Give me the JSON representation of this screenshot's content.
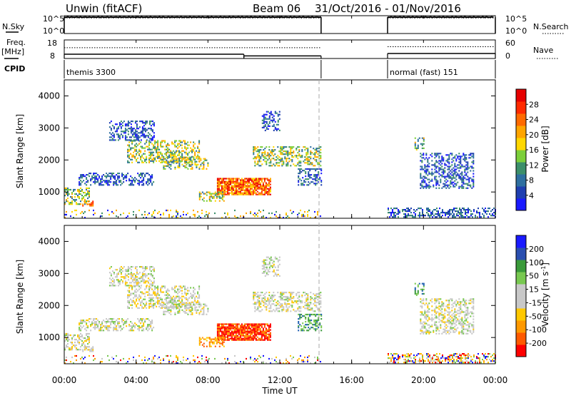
{
  "header": {
    "station": "Unwin (fitACF)",
    "beam": "Beam 06",
    "date_range": "31/Oct/2016 - 01/Nov/2016"
  },
  "labels": {
    "nsky": "N.Sky",
    "nsearch": "N.Search",
    "freq": "Freq.",
    "freq_unit": "[MHz]",
    "nave": "Nave",
    "cpid": "CPID",
    "slant_range": "Slant Range [km]",
    "x_axis": "Time UT",
    "power_cb": "Power [dB]",
    "velocity_cb": "Velocity [m s"
  },
  "noise_ticks_left": [
    "10^5",
    "10^0"
  ],
  "noise_ticks_right": [
    "10^5",
    "10^0"
  ],
  "freq_ticks_left": [
    "18",
    "8"
  ],
  "freq_ticks_right": [
    "60",
    "0"
  ],
  "cpid_segments": [
    {
      "label": "themis 3300",
      "start": 0.0,
      "end": 14.3
    },
    {
      "label": "normal (fast) 151",
      "start": 18.0,
      "end": 24.0
    }
  ],
  "x_ticks": [
    "00:00",
    "04:00",
    "08:00",
    "12:00",
    "16:00",
    "20:00",
    "00:00"
  ],
  "range_ticks": [
    "1000",
    "2000",
    "3000",
    "4000"
  ],
  "power_scale": {
    "ticks": [
      "4",
      "8",
      "12",
      "16",
      "20",
      "24",
      "28"
    ],
    "colors": [
      "#1a1aff",
      "#1f3fb0",
      "#2e6fa0",
      "#3c8f6a",
      "#7ccf3a",
      "#ffd700",
      "#ffa500",
      "#ff6a00",
      "#ff2a00",
      "#e60000"
    ]
  },
  "velocity_scale": {
    "ticks": [
      "-200",
      "-100",
      "-50",
      "-15",
      "15",
      "50",
      "100",
      "200"
    ],
    "colors": [
      "#ff0000",
      "#ff5a00",
      "#ff9900",
      "#ffc800",
      "#c8c8c8",
      "#c8c8c8",
      "#78c850",
      "#3a9a3a",
      "#2a4fb0",
      "#1a1aff"
    ]
  },
  "chart_data": {
    "type": "heatmap",
    "x_range_hours": [
      0,
      24
    ],
    "y_range_km": [
      180,
      4500
    ],
    "data_gap_hours": [
      14.3,
      18.0
    ],
    "nsky_level": 4.6,
    "nsearch_level": 4.5,
    "freq_segments": [
      {
        "start": 0.0,
        "end": 10.0,
        "mhz": 10.3
      },
      {
        "start": 10.0,
        "end": 14.3,
        "mhz": 9.4
      },
      {
        "start": 18.0,
        "end": 24.0,
        "mhz": 10.7
      }
    ],
    "nave_segments": [
      {
        "start": 0.0,
        "end": 14.3,
        "value": 35
      },
      {
        "start": 18.0,
        "end": 24.0,
        "value": 38
      }
    ],
    "echo_regions": [
      {
        "t0": 0.0,
        "t1": 1.4,
        "r0": 600,
        "r1": 1100,
        "power": "mid",
        "vel": "grey"
      },
      {
        "t0": 1.0,
        "t1": 1.6,
        "r0": 550,
        "r1": 700,
        "power": "high",
        "vel": "grey"
      },
      {
        "t0": 0.8,
        "t1": 5.0,
        "r0": 1200,
        "r1": 1600,
        "power": "low",
        "vel": "grey"
      },
      {
        "t0": 3.5,
        "t1": 7.5,
        "r0": 1900,
        "r1": 2600,
        "power": "mid",
        "vel": "grey"
      },
      {
        "t0": 5.5,
        "t1": 8.0,
        "r0": 1700,
        "r1": 2100,
        "power": "mid",
        "vel": "grey"
      },
      {
        "t0": 2.5,
        "t1": 5.0,
        "r0": 2600,
        "r1": 3200,
        "power": "low",
        "vel": "grey"
      },
      {
        "t0": 8.5,
        "t1": 11.5,
        "r0": 900,
        "r1": 1400,
        "power": "veryhigh",
        "vel": "red"
      },
      {
        "t0": 7.5,
        "t1": 9.0,
        "r0": 700,
        "r1": 1000,
        "power": "mid",
        "vel": "orange"
      },
      {
        "t0": 10.5,
        "t1": 14.3,
        "r0": 1800,
        "r1": 2400,
        "power": "mid",
        "vel": "grey"
      },
      {
        "t0": 13.0,
        "t1": 14.3,
        "r0": 1200,
        "r1": 1700,
        "power": "low",
        "vel": "green"
      },
      {
        "t0": 11.0,
        "t1": 12.0,
        "r0": 2900,
        "r1": 3500,
        "power": "low",
        "vel": "grey"
      },
      {
        "t0": 18.0,
        "t1": 24.0,
        "r0": 200,
        "r1": 500,
        "power": "low",
        "vel": "mixed"
      },
      {
        "t0": 19.5,
        "t1": 20.0,
        "r0": 2300,
        "r1": 2700,
        "power": "mid",
        "vel": "green"
      },
      {
        "t0": 19.8,
        "t1": 22.8,
        "r0": 1100,
        "r1": 2200,
        "power": "low",
        "vel": "grey"
      },
      {
        "t0": 0.0,
        "t1": 14.3,
        "r0": 180,
        "r1": 450,
        "power": "sparse",
        "vel": "mixed"
      }
    ]
  }
}
